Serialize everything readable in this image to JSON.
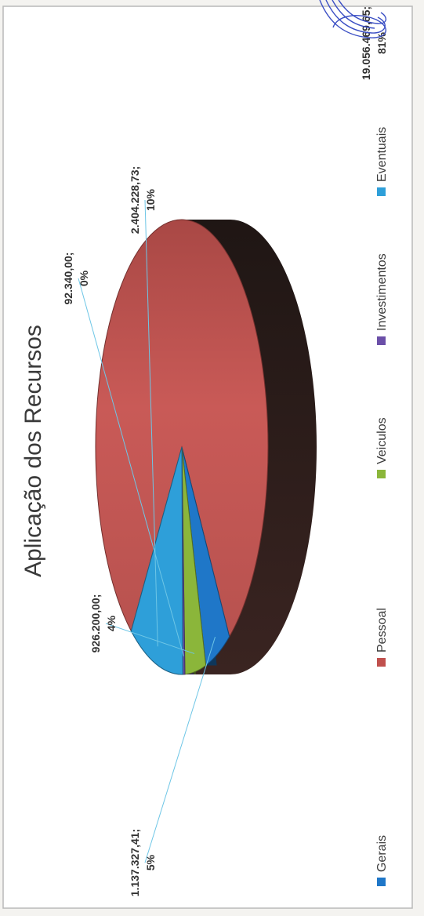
{
  "chart_data": {
    "type": "pie",
    "title": "Aplicação dos Recursos",
    "categories": [
      "Gerais",
      "Pessoal",
      "Veiculos",
      "Investimentos",
      "Eventuais"
    ],
    "values": [
      1137327.41,
      19056469.65,
      926200.0,
      92340.0,
      2404228.73
    ],
    "value_labels": [
      "1.137.327,41;",
      "19.056.469,65;",
      "926.200,00;",
      "92.340,00;",
      "2.404.228,73;"
    ],
    "percent_labels": [
      "5%",
      "81%",
      "4%",
      "0%",
      "10%"
    ],
    "colors": [
      "#1f77c8",
      "#c0504d",
      "#8bb63a",
      "#6b4fa8",
      "#2e9fd9"
    ],
    "legend_position": "bottom",
    "style": "3d"
  }
}
